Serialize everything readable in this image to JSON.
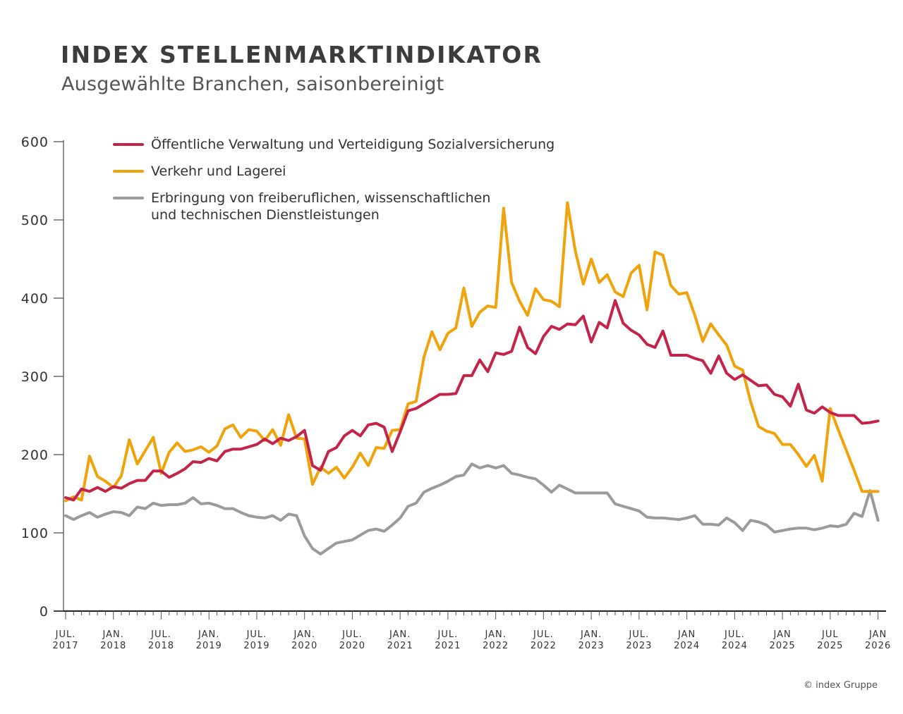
{
  "header": {
    "title": "INDEX STELLENMARKTINDIKATOR",
    "subtitle": "Ausgewählte Branchen, saisonbereinigt"
  },
  "credit": "© index Gruppe",
  "chart_data": {
    "type": "line",
    "title": "INDEX STELLENMARKTINDIKATOR",
    "subtitle": "Ausgewählte Branchen, saisonbereinigt",
    "xlabel": "",
    "ylabel": "",
    "ylim": [
      0,
      600
    ],
    "yticks": [
      "0",
      "100",
      "200",
      "300",
      "400",
      "500",
      "600"
    ],
    "grid": false,
    "legend_position": "top-left",
    "xticks": [
      [
        "JUL.",
        "2017"
      ],
      [
        "JAN.",
        "2018"
      ],
      [
        "JUL.",
        "2018"
      ],
      [
        "JAN.",
        "2019"
      ],
      [
        "JUL.",
        "2019"
      ],
      [
        "JAN.",
        "2020"
      ],
      [
        "JUL.",
        "2020"
      ],
      [
        "JAN.",
        "2021"
      ],
      [
        "JUL.",
        "2021"
      ],
      [
        "JAN.",
        "2022"
      ],
      [
        "JUL.",
        "2022"
      ],
      [
        "JAN.",
        "2023"
      ],
      [
        "JUL.",
        "2023"
      ],
      [
        "JAN",
        "2024"
      ],
      [
        "JUL.",
        "2024"
      ],
      [
        "JAN",
        "2025"
      ],
      [
        "JUL",
        "2025"
      ],
      [
        "JAN",
        "2026"
      ]
    ],
    "x": [
      "2017-07",
      "2017-08",
      "2017-09",
      "2017-10",
      "2017-11",
      "2017-12",
      "2018-01",
      "2018-02",
      "2018-03",
      "2018-04",
      "2018-05",
      "2018-06",
      "2018-07",
      "2018-08",
      "2018-09",
      "2018-10",
      "2018-11",
      "2018-12",
      "2019-01",
      "2019-02",
      "2019-03",
      "2019-04",
      "2019-05",
      "2019-06",
      "2019-07",
      "2019-08",
      "2019-09",
      "2019-10",
      "2019-11",
      "2019-12",
      "2020-01",
      "2020-02",
      "2020-03",
      "2020-04",
      "2020-05",
      "2020-06",
      "2020-07",
      "2020-08",
      "2020-09",
      "2020-10",
      "2020-11",
      "2020-12",
      "2021-01",
      "2021-02",
      "2021-03",
      "2021-04",
      "2021-05",
      "2021-06",
      "2021-07",
      "2021-08",
      "2021-09",
      "2021-10",
      "2021-11",
      "2021-12",
      "2022-01",
      "2022-02",
      "2022-03",
      "2022-04",
      "2022-05",
      "2022-06",
      "2022-07",
      "2022-08",
      "2022-09",
      "2022-10",
      "2022-11",
      "2022-12",
      "2023-01",
      "2023-02",
      "2023-03",
      "2023-04",
      "2023-05",
      "2023-06",
      "2023-07",
      "2023-08",
      "2023-09",
      "2023-10",
      "2023-11",
      "2023-12",
      "2024-01",
      "2024-02",
      "2024-03",
      "2024-04",
      "2024-05",
      "2024-06",
      "2024-07",
      "2024-08",
      "2024-09",
      "2024-10",
      "2024-11",
      "2024-12",
      "2025-01",
      "2025-02",
      "2025-03",
      "2025-04",
      "2025-05",
      "2025-06",
      "2025-07",
      "2025-08",
      "2025-09",
      "2025-10",
      "2025-11",
      "2025-12",
      "2026-01"
    ],
    "series": [
      {
        "name": "Öffentliche Verwaltung und Verteidigung Sozialversicherung",
        "color": "#c4244a",
        "values": [
          145,
          142,
          156,
          153,
          158,
          153,
          159,
          157,
          163,
          167,
          167,
          179,
          179,
          171,
          176,
          182,
          191,
          190,
          195,
          192,
          204,
          207,
          207,
          210,
          213,
          220,
          214,
          221,
          218,
          223,
          231,
          186,
          180,
          204,
          209,
          224,
          231,
          224,
          238,
          240,
          235,
          204,
          229,
          256,
          259,
          265,
          271,
          277,
          277,
          278,
          301,
          301,
          321,
          306,
          330,
          328,
          332,
          363,
          337,
          329,
          351,
          364,
          360,
          367,
          366,
          377,
          344,
          369,
          362,
          397,
          368,
          359,
          353,
          341,
          337,
          358,
          327,
          327,
          327,
          323,
          320,
          304,
          326,
          304,
          296,
          302,
          295,
          288,
          289,
          277,
          274,
          262,
          290,
          257,
          253,
          261,
          254,
          250,
          250,
          250,
          240,
          241,
          243
        ]
      },
      {
        "name": "Verkehr und Lagerei",
        "color": "#f0a30a",
        "values": [
          141,
          146,
          142,
          198,
          172,
          166,
          158,
          173,
          219,
          188,
          205,
          222,
          176,
          203,
          215,
          204,
          206,
          210,
          203,
          211,
          233,
          238,
          222,
          232,
          230,
          218,
          232,
          212,
          251,
          221,
          220,
          162,
          184,
          176,
          184,
          170,
          184,
          202,
          186,
          209,
          208,
          231,
          232,
          265,
          268,
          325,
          357,
          334,
          355,
          362,
          413,
          364,
          382,
          390,
          388,
          515,
          420,
          396,
          378,
          412,
          398,
          396,
          389,
          522,
          460,
          418,
          450,
          420,
          430,
          408,
          402,
          432,
          442,
          385,
          459,
          455,
          416,
          405,
          407,
          378,
          345,
          367,
          353,
          340,
          313,
          308,
          268,
          236,
          230,
          227,
          213,
          213,
          200,
          185,
          199,
          166,
          259,
          232,
          206,
          180,
          153,
          153,
          153
        ]
      },
      {
        "name": "Erbringung von freiberuflichen, wissenschaftlichen\nund technischen Dienstleistungen",
        "color": "#9b9b9b",
        "values": [
          122,
          117,
          122,
          126,
          120,
          124,
          127,
          126,
          122,
          133,
          131,
          138,
          135,
          136,
          136,
          138,
          145,
          137,
          138,
          135,
          131,
          131,
          126,
          122,
          120,
          119,
          122,
          116,
          124,
          122,
          96,
          80,
          73,
          80,
          87,
          89,
          91,
          97,
          103,
          105,
          102,
          110,
          119,
          134,
          138,
          152,
          157,
          161,
          166,
          172,
          174,
          188,
          183,
          186,
          183,
          186,
          176,
          174,
          171,
          169,
          161,
          152,
          161,
          156,
          151,
          151,
          151,
          151,
          151,
          137,
          134,
          131,
          128,
          120,
          119,
          119,
          118,
          117,
          119,
          122,
          111,
          111,
          110,
          119,
          113,
          103,
          116,
          114,
          110,
          101,
          103,
          105,
          106,
          106,
          104,
          106,
          109,
          108,
          111,
          125,
          121,
          154,
          116
        ]
      }
    ]
  }
}
